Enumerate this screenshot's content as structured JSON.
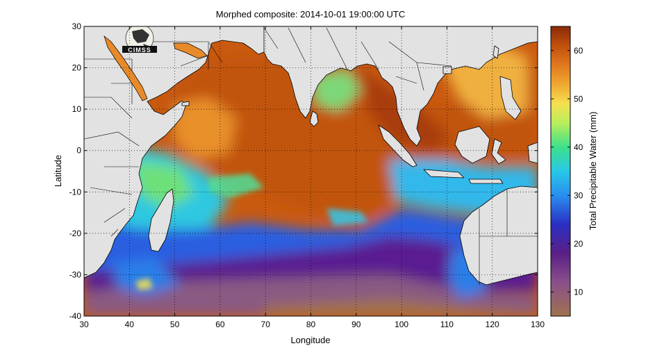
{
  "title": "Morphed composite: 2014-10-01 19:00:00 UTC",
  "logo_text": "CIMSS",
  "map": {
    "xlabel": "Longitude",
    "ylabel": "Latitude",
    "xlim": [
      30,
      130
    ],
    "ylim": [
      -40,
      30
    ],
    "xticks": [
      30,
      40,
      50,
      60,
      70,
      80,
      90,
      100,
      110,
      120,
      130
    ],
    "yticks": [
      -40,
      -30,
      -20,
      -10,
      0,
      10,
      20,
      30
    ],
    "grid": true,
    "grid_style": "dotted",
    "land_color": "#e2e2e2",
    "coast_color": "#000000"
  },
  "colorbar": {
    "label": "Total Precipitable Water (mm)",
    "range": [
      5,
      65
    ],
    "ticks": [
      10,
      20,
      30,
      40,
      50,
      60
    ],
    "placement": "right",
    "colormap": [
      [
        5,
        "#a0724e"
      ],
      [
        12,
        "#8a4f8a"
      ],
      [
        18,
        "#5a1f86"
      ],
      [
        24,
        "#2a2fc4"
      ],
      [
        30,
        "#2a8ef0"
      ],
      [
        35,
        "#28c8e8"
      ],
      [
        40,
        "#3ee08a"
      ],
      [
        45,
        "#b9ee5a"
      ],
      [
        49,
        "#f6e050"
      ],
      [
        53,
        "#f0a830"
      ],
      [
        57,
        "#e07820"
      ],
      [
        61,
        "#c0500c"
      ],
      [
        65,
        "#8a2a0a"
      ]
    ]
  }
}
